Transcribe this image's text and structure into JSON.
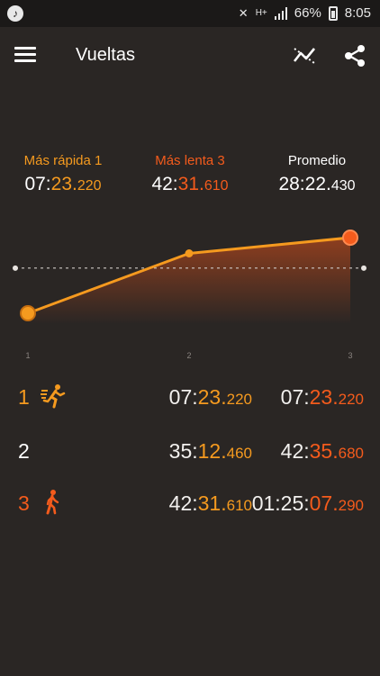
{
  "status_bar": {
    "battery": "66%",
    "time": "8:05",
    "network": "H+"
  },
  "app": {
    "title": "Vueltas"
  },
  "summary": {
    "fastest": {
      "label": "Más rápida 1",
      "value_a": "07:",
      "value_b": "23.",
      "value_c": "220"
    },
    "slowest": {
      "label": "Más lenta 3",
      "value_a": "42:",
      "value_b": "31.",
      "value_c": "610"
    },
    "average": {
      "label": "Promedio",
      "value_a": "28:22.",
      "value_c": "430"
    }
  },
  "chart_data": {
    "type": "line",
    "x": [
      1,
      2,
      3
    ],
    "x_labels": [
      "1",
      "2",
      "3"
    ],
    "values_seconds": [
      443.22,
      2112.46,
      2551.61
    ],
    "average_seconds": 1702.43,
    "colors": {
      "line": "#f59a1f",
      "fastest_marker": "#f59a1f",
      "slowest_marker": "#f45b1c",
      "fill": "#e0521a"
    }
  },
  "laps": [
    {
      "number": "1",
      "icon": "running-fast-icon",
      "split_a": "07:",
      "split_b": "23.",
      "split_c": "220",
      "total_a": "07:",
      "total_b": "23.",
      "total_c": "220"
    },
    {
      "number": "2",
      "icon": "",
      "split_a": "35:",
      "split_b": "12.",
      "split_c": "460",
      "total_a": "42:",
      "total_b": "35.",
      "total_c": "680"
    },
    {
      "number": "3",
      "icon": "walking-icon",
      "split_a": "42:",
      "split_b": "31.",
      "split_c": "610",
      "total_a": "01:25:",
      "total_b": "07.",
      "total_c": "290"
    }
  ],
  "colors": {
    "accent": "#f59a1f",
    "slow": "#f45b1c",
    "background": "#2a2624"
  }
}
